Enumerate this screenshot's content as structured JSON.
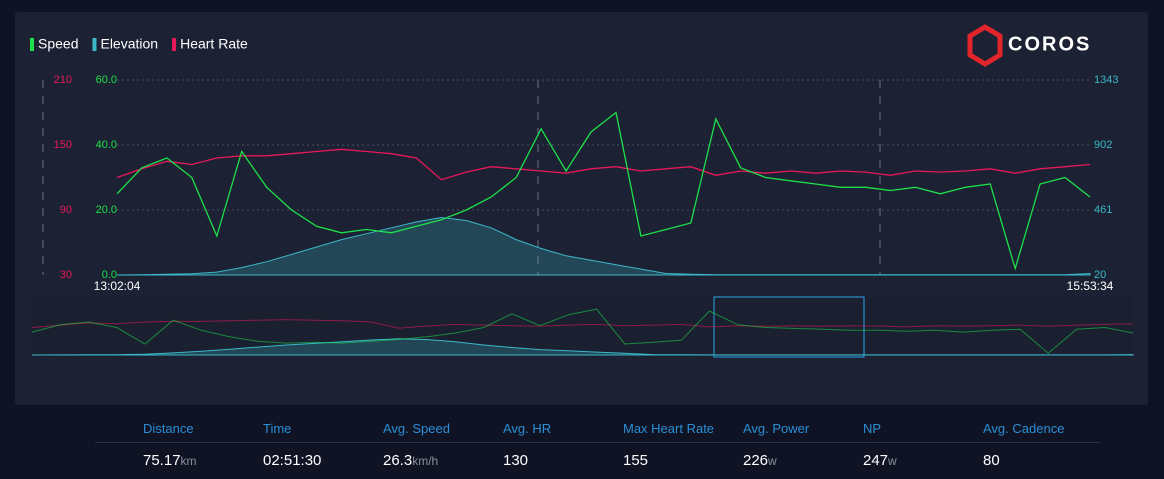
{
  "chart_data": {
    "type": "line",
    "logo": "COROS",
    "categories": [
      "13:02:04",
      null,
      null,
      null,
      null,
      null,
      null,
      null,
      null,
      null,
      null,
      null,
      null,
      null,
      null,
      null,
      null,
      null,
      null,
      null,
      null,
      null,
      null,
      null,
      null,
      null,
      null,
      null,
      null,
      null,
      null,
      null,
      null,
      null,
      null,
      null,
      null,
      null,
      null,
      "15:53:34"
    ],
    "series": [
      {
        "name": "Speed",
        "color": "#1ee04a",
        "axis": "y",
        "values": [
          25,
          33,
          36,
          30,
          12,
          38,
          27,
          20,
          15,
          13,
          14,
          13,
          15,
          17,
          20,
          24,
          30,
          45,
          32,
          44,
          50,
          12,
          14,
          16,
          48,
          33,
          30,
          29,
          28,
          27,
          27,
          26,
          27,
          25,
          27,
          28,
          2,
          28,
          30,
          24
        ]
      },
      {
        "name": "Elevation",
        "color": "#3bb8c8",
        "axis": "y2",
        "values": [
          20,
          22,
          25,
          28,
          40,
          70,
          110,
          160,
          210,
          260,
          300,
          340,
          380,
          410,
          390,
          340,
          260,
          200,
          150,
          120,
          90,
          60,
          30,
          25,
          22,
          22,
          22,
          22,
          22,
          22,
          22,
          22,
          22,
          22,
          22,
          22,
          22,
          22,
          22,
          30
        ]
      },
      {
        "name": "Heart Rate",
        "color": "#e8185a",
        "axis": "y3",
        "values": [
          120,
          128,
          135,
          132,
          138,
          140,
          140,
          142,
          144,
          146,
          144,
          142,
          138,
          118,
          125,
          130,
          128,
          126,
          124,
          128,
          130,
          126,
          128,
          130,
          122,
          126,
          124,
          126,
          124,
          126,
          125,
          122,
          126,
          125,
          126,
          128,
          124,
          128,
          130,
          132
        ]
      }
    ],
    "ylim": [
      0,
      60
    ],
    "yticks": [
      {
        "value": 0,
        "label": "0.0"
      },
      {
        "value": 20,
        "label": "20.0"
      },
      {
        "value": 40,
        "label": "40.0"
      },
      {
        "value": 60,
        "label": "60.0"
      }
    ],
    "y2lim": [
      20,
      1343
    ],
    "y2ticks": [
      20,
      461,
      902,
      1343
    ],
    "y3lim": [
      30,
      210
    ],
    "y3ticks": [
      30,
      90,
      150,
      210
    ],
    "grid": true
  },
  "stats": [
    {
      "label": "Distance",
      "value": "75.17",
      "unit": "km"
    },
    {
      "label": "Time",
      "value": "02:51:30"
    },
    {
      "label": "Avg. Speed",
      "value": "26.3",
      "unit": "km/h"
    },
    {
      "label": "Avg. HR",
      "value": "130"
    },
    {
      "label": "Max Heart Rate",
      "value": "155"
    },
    {
      "label": "Avg. Power",
      "value": "226",
      "unit": "w"
    },
    {
      "label": "NP",
      "value": "247",
      "unit": "w"
    },
    {
      "label": "Avg. Cadence",
      "value": "80"
    }
  ]
}
